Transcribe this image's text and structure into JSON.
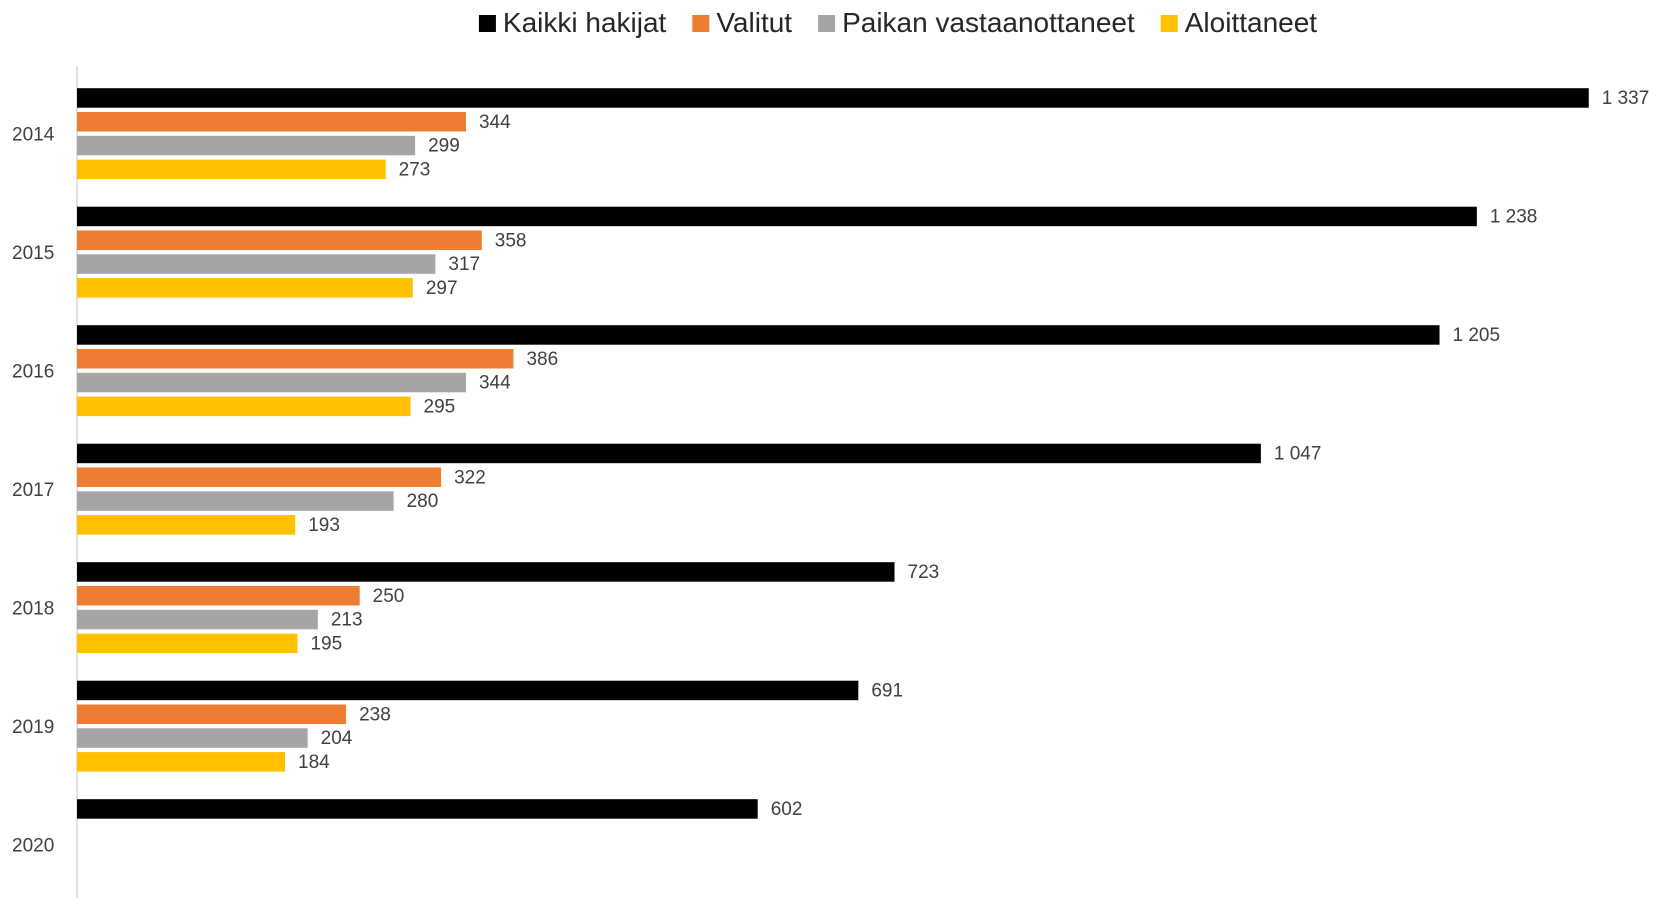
{
  "chart_data": {
    "type": "hbar",
    "categories": [
      "2014",
      "2015",
      "2016",
      "2017",
      "2018",
      "2019",
      "2020"
    ],
    "series": [
      {
        "name": "Kaikki hakijat",
        "color": "#000000",
        "values": [
          1337,
          1238,
          1205,
          1047,
          723,
          691,
          602
        ],
        "value_labels": [
          "1 337",
          "1 238",
          "1 205",
          "1 047",
          "723",
          "691",
          "602"
        ]
      },
      {
        "name": "Valitut",
        "color": "#ED7D31",
        "values": [
          344,
          358,
          386,
          322,
          250,
          238,
          null
        ]
      },
      {
        "name": "Paikan vastaanottaneet",
        "color": "#A5A5A5",
        "values": [
          299,
          317,
          344,
          280,
          213,
          204,
          null
        ]
      },
      {
        "name": "Aloittaneet",
        "color": "#FFC000",
        "values": [
          273,
          297,
          295,
          193,
          195,
          184,
          null
        ]
      }
    ],
    "xlim": [
      0,
      1400
    ],
    "legend": "top"
  }
}
